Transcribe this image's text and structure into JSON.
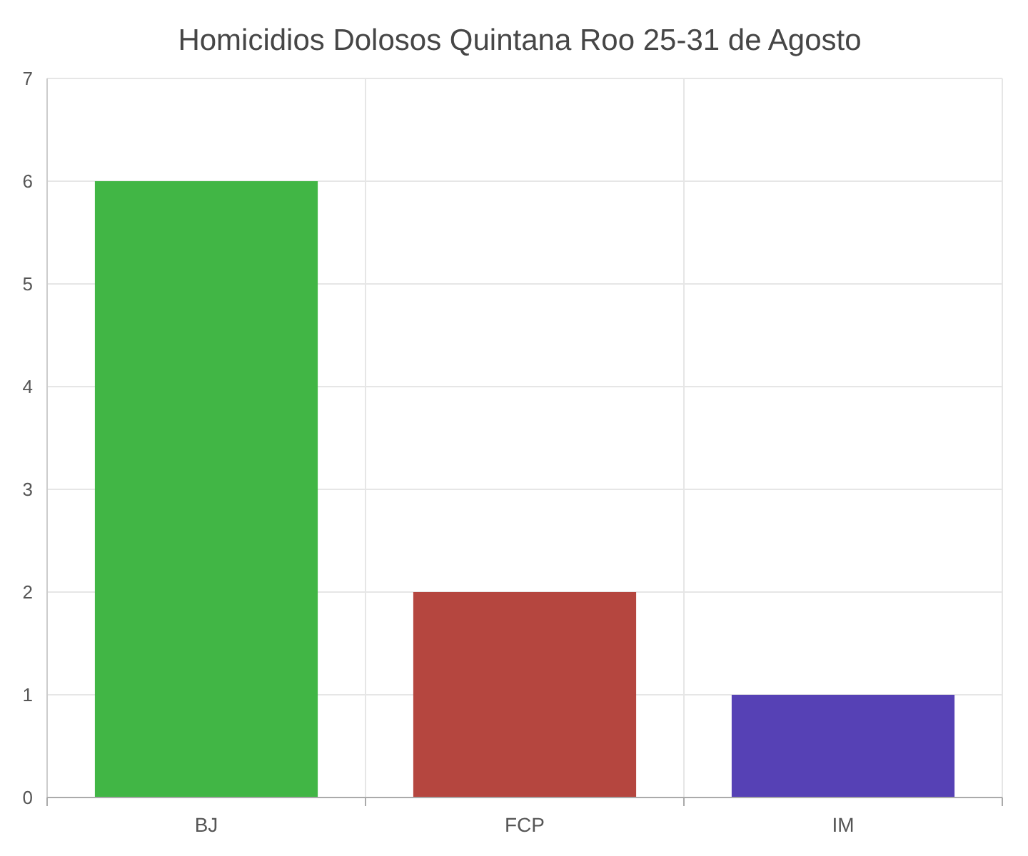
{
  "chart_data": {
    "type": "bar",
    "title": "Homicidios Dolosos Quintana Roo 25-31 de Agosto",
    "categories": [
      "BJ",
      "FCP",
      "IM"
    ],
    "values": [
      6,
      2,
      1
    ],
    "colors": [
      "#41b645",
      "#b5463f",
      "#5641b5"
    ],
    "ylim": [
      0,
      7
    ],
    "yticks": [
      0,
      1,
      2,
      3,
      4,
      5,
      6,
      7
    ],
    "grid": true
  }
}
